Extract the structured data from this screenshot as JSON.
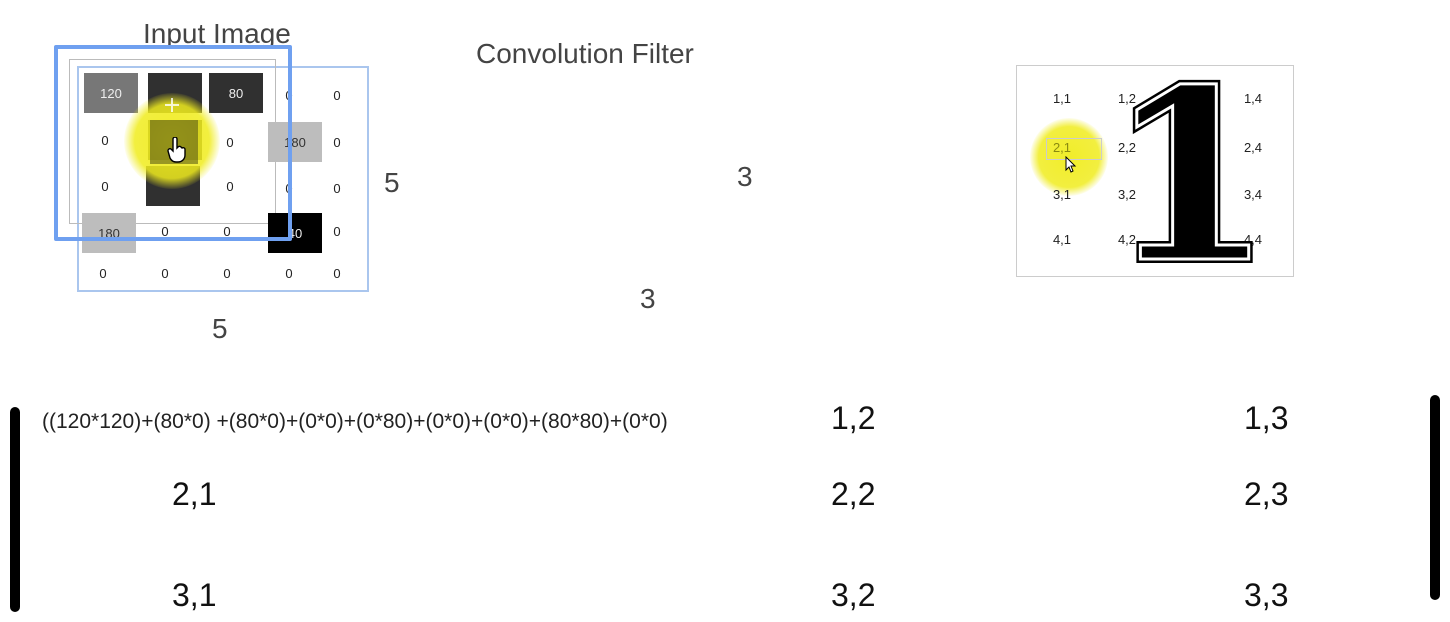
{
  "input": {
    "title": "Input Image",
    "cells": [
      [
        "120",
        "",
        "80",
        "0",
        "0"
      ],
      [
        "0",
        "",
        "0",
        "180",
        "0"
      ],
      [
        "0",
        "",
        "0",
        "0",
        "0"
      ],
      [
        "180",
        "0",
        "0",
        "40",
        "0"
      ],
      [
        "0",
        "0",
        "0",
        "0",
        "0"
      ]
    ],
    "width_label": "5",
    "height_label": "5"
  },
  "filter": {
    "title": "Convolution Filter",
    "height_label": "3",
    "width_label": "3"
  },
  "output_grid": {
    "cells": [
      [
        "1,1",
        "1,2",
        "1,3",
        "1,4"
      ],
      [
        "2,1",
        "2,2",
        "2,3",
        "2,4"
      ],
      [
        "3,1",
        "3,2",
        "3,3",
        "3,4"
      ],
      [
        "4,1",
        "4,2",
        "4,3",
        "4,4"
      ]
    ],
    "overlay_digit": "1"
  },
  "matrix": {
    "formula": "((120*120)+(80*0) +(80*0)+(0*0)+(0*80)+(0*0)+(0*0)+(80*80)+(0*0)",
    "cells": [
      [
        "",
        "1,2",
        "1,3"
      ],
      [
        "2,1",
        "2,2",
        "2,3"
      ],
      [
        "3,1",
        "3,2",
        "3,3"
      ]
    ]
  },
  "colors": {
    "highlight": "#f0ec1e",
    "kernel_border": "#6fa0f0",
    "grid_border": "#aac6ee"
  }
}
